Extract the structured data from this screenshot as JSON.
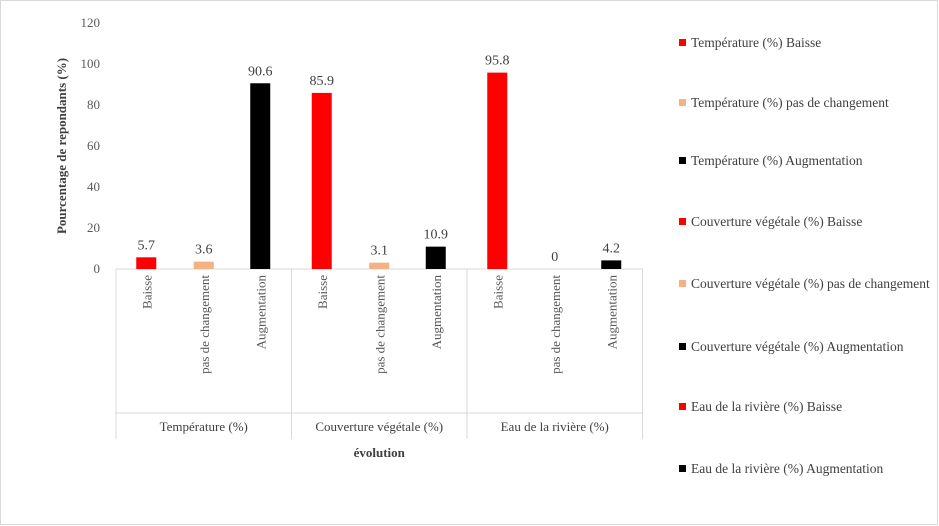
{
  "chart_data": {
    "type": "bar",
    "ylabel": "Pourcentage de repondants (%)",
    "xlabel": "évolution",
    "ylim": [
      0,
      120
    ],
    "yticks": [
      0,
      20,
      40,
      60,
      80,
      100,
      120
    ],
    "grid": false,
    "legend_position": "right",
    "groups": [
      {
        "label": "Température (%)",
        "categories": [
          "Baisse",
          "pas de changement",
          "Augmentation"
        ],
        "values": [
          5.7,
          3.6,
          90.6
        ],
        "value_labels": [
          "5.7",
          "3.6",
          "90.6"
        ],
        "colors": [
          "#ff0000",
          "#f4b183",
          "#000000"
        ]
      },
      {
        "label": "Couverture végétale (%)",
        "categories": [
          "Baisse",
          "pas de changement",
          "Augmentation"
        ],
        "values": [
          85.9,
          3.1,
          10.9
        ],
        "value_labels": [
          "85.9",
          "3.1",
          "10.9"
        ],
        "colors": [
          "#ff0000",
          "#f4b183",
          "#000000"
        ]
      },
      {
        "label": "Eau de la rivière (%)",
        "categories": [
          "Baisse",
          "pas de changement",
          "Augmentation"
        ],
        "values": [
          95.8,
          0,
          4.2
        ],
        "value_labels": [
          "95.8",
          "0",
          "4.2"
        ],
        "colors": [
          "#ff0000",
          "#f4b183",
          "#000000"
        ]
      }
    ],
    "legend": [
      {
        "label": "Température (%) Baisse",
        "color": "#ff0000"
      },
      {
        "label": "Température (%) pas de changement",
        "color": "#f4b183"
      },
      {
        "label": "Température (%) Augmentation",
        "color": "#000000"
      },
      {
        "label": "Couverture végétale (%) Baisse",
        "color": "#ff0000"
      },
      {
        "label": "Couverture végétale (%) pas de changement",
        "color": "#f4b183"
      },
      {
        "label": "Couverture végétale (%) Augmentation",
        "color": "#000000"
      },
      {
        "label": "Eau de la rivière (%) Baisse",
        "color": "#ff0000"
      },
      {
        "label": "Eau de la rivière (%) Augmentation",
        "color": "#000000"
      }
    ]
  }
}
